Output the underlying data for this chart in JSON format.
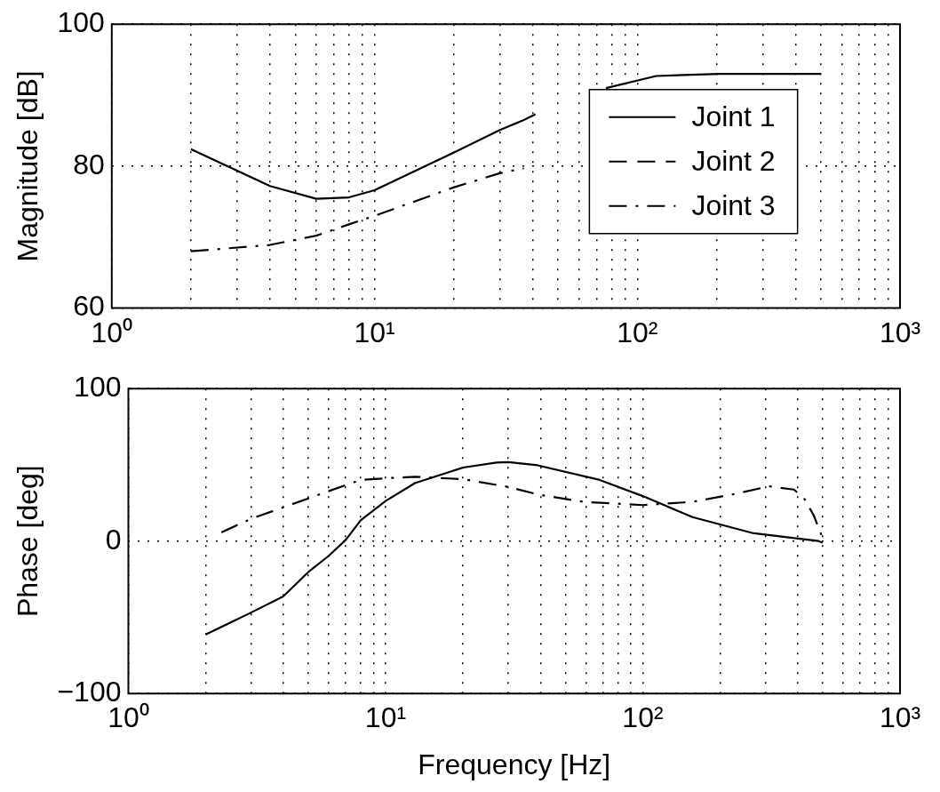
{
  "chart_data": [
    {
      "type": "line",
      "ylabel": "Magnitude [dB]",
      "xlim": [
        1,
        1000
      ],
      "ylim": [
        60,
        100
      ],
      "xticks": [
        {
          "value": 1,
          "label": "10⁰"
        },
        {
          "value": 2,
          "label": null
        },
        {
          "value": 3,
          "label": null
        },
        {
          "value": 4,
          "label": null
        },
        {
          "value": 5,
          "label": null
        },
        {
          "value": 6,
          "label": null
        },
        {
          "value": 7,
          "label": null
        },
        {
          "value": 8,
          "label": null
        },
        {
          "value": 9,
          "label": null
        },
        {
          "value": 10,
          "label": "10¹"
        },
        {
          "value": 20,
          "label": null
        },
        {
          "value": 30,
          "label": null
        },
        {
          "value": 40,
          "label": null
        },
        {
          "value": 50,
          "label": null
        },
        {
          "value": 60,
          "label": null
        },
        {
          "value": 70,
          "label": null
        },
        {
          "value": 80,
          "label": null
        },
        {
          "value": 90,
          "label": null
        },
        {
          "value": 100,
          "label": "10²"
        },
        {
          "value": 200,
          "label": null
        },
        {
          "value": 300,
          "label": null
        },
        {
          "value": 400,
          "label": null
        },
        {
          "value": 500,
          "label": null
        },
        {
          "value": 600,
          "label": null
        },
        {
          "value": 700,
          "label": null
        },
        {
          "value": 800,
          "label": null
        },
        {
          "value": 900,
          "label": null
        },
        {
          "value": 1000,
          "label": "10³"
        }
      ],
      "yticks": [
        60,
        80,
        100
      ],
      "log": "x",
      "grid": true,
      "legend": "top right",
      "series": [
        {
          "name": "Joint 1",
          "color": "#000000",
          "line_style": "solid",
          "x": [
            2,
            4,
            6,
            8,
            10,
            20,
            30,
            37,
            41,
            55,
            76,
            118,
            205,
            356,
            500
          ],
          "values": [
            82.4,
            77.2,
            75.4,
            75.6,
            76.6,
            81.9,
            85.1,
            86.5,
            87.3,
            null,
            91.0,
            92.7,
            93.0,
            93.0,
            93.0
          ]
        },
        {
          "name": "Joint 2",
          "color": "#000000",
          "line_style": "dashed"
        },
        {
          "name": "Joint 3",
          "color": "#000000",
          "line_style": "dashdot",
          "x": [
            2,
            4,
            6,
            8,
            10,
            20,
            30,
            37
          ],
          "values": [
            68.0,
            68.9,
            70.2,
            71.8,
            73.0,
            77.0,
            79.0,
            79.7
          ]
        }
      ]
    },
    {
      "type": "line",
      "ylabel": "Phase [deg]",
      "xlabel": "Frequency [Hz]",
      "xlim": [
        1,
        1000
      ],
      "ylim": [
        -100,
        100
      ],
      "xticks": [
        {
          "value": 1,
          "label": "10⁰"
        },
        {
          "value": 2,
          "label": null
        },
        {
          "value": 3,
          "label": null
        },
        {
          "value": 4,
          "label": null
        },
        {
          "value": 5,
          "label": null
        },
        {
          "value": 6,
          "label": null
        },
        {
          "value": 7,
          "label": null
        },
        {
          "value": 8,
          "label": null
        },
        {
          "value": 9,
          "label": null
        },
        {
          "value": 10,
          "label": "10¹"
        },
        {
          "value": 20,
          "label": null
        },
        {
          "value": 30,
          "label": null
        },
        {
          "value": 40,
          "label": null
        },
        {
          "value": 50,
          "label": null
        },
        {
          "value": 60,
          "label": null
        },
        {
          "value": 70,
          "label": null
        },
        {
          "value": 80,
          "label": null
        },
        {
          "value": 90,
          "label": null
        },
        {
          "value": 100,
          "label": "10²"
        },
        {
          "value": 200,
          "label": null
        },
        {
          "value": 300,
          "label": null
        },
        {
          "value": 400,
          "label": null
        },
        {
          "value": 500,
          "label": null
        },
        {
          "value": 600,
          "label": null
        },
        {
          "value": 700,
          "label": null
        },
        {
          "value": 800,
          "label": null
        },
        {
          "value": 900,
          "label": null
        },
        {
          "value": 1000,
          "label": "10³"
        }
      ],
      "yticks": [
        {
          "value": -100,
          "label": "−100"
        },
        0,
        100
      ],
      "log": "x",
      "grid": true,
      "series": [
        {
          "color": "#000000",
          "line_style": "solid",
          "x": [
            2,
            3,
            4,
            5,
            6,
            7,
            8,
            10,
            13,
            20,
            27,
            30,
            39,
            68,
            100,
            156,
            270,
            482,
            500
          ],
          "values": [
            -61.3,
            -46.9,
            -36.3,
            -20.4,
            -9.8,
            0.8,
            13.6,
            26.3,
            38.0,
            48.2,
            51.5,
            51.8,
            49.7,
            40.1,
            29.5,
            15.7,
            5.1,
            0,
            -1
          ]
        },
        {
          "color": "#000000",
          "line_style": "dashdot",
          "x": [
            2.3,
            3,
            4,
            6,
            8,
            10,
            13,
            20,
            30,
            39,
            59,
            100,
            156,
            223,
            310,
            387,
            426,
            462,
            500
          ],
          "values": [
            5.7,
            14.6,
            22.1,
            32.7,
            40.1,
            41.2,
            42.2,
            40.6,
            35.5,
            30.6,
            25.7,
            23.6,
            25.7,
            30.6,
            35.9,
            33.8,
            27.4,
            16.8,
            2
          ]
        }
      ]
    }
  ]
}
